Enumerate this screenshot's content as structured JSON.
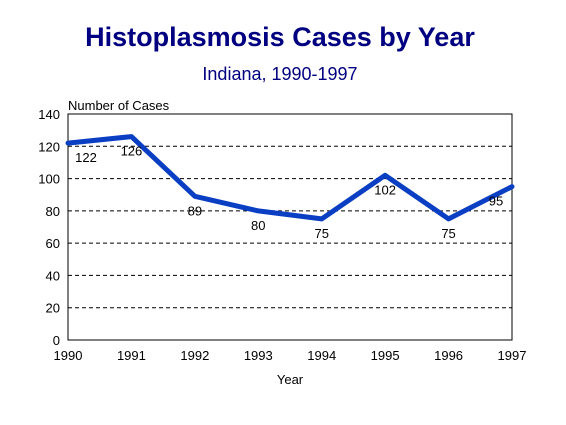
{
  "chart_data": {
    "type": "line",
    "title": "Histoplasmosis Cases by Year",
    "subtitle": "Indiana, 1990-1997",
    "xlabel": "Year",
    "ylabel": "Number of Cases",
    "categories": [
      "1990",
      "1991",
      "1992",
      "1993",
      "1994",
      "1995",
      "1996",
      "1997"
    ],
    "values": [
      122,
      126,
      89,
      80,
      75,
      102,
      75,
      95
    ],
    "data_labels": [
      "122",
      "126",
      "89",
      "80",
      "75",
      "102",
      "75",
      "95"
    ],
    "ylim": [
      0,
      140
    ],
    "yticks": [
      "0",
      "20",
      "40",
      "60",
      "80",
      "100",
      "120",
      "140"
    ],
    "grid": true,
    "line_color": "#0a3fc4"
  }
}
